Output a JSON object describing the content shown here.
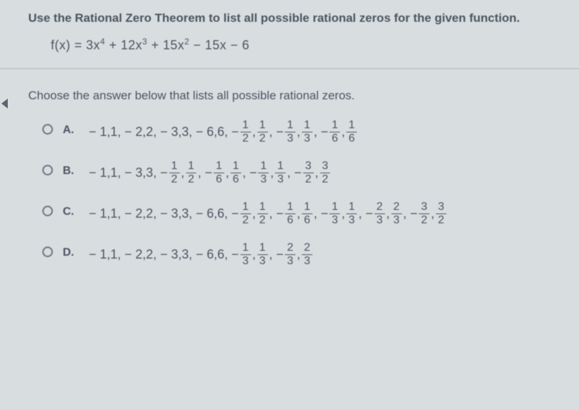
{
  "colors": {
    "bg": "#d8dde0",
    "text": "#4a5560",
    "divider": "#aab2b8",
    "radio_border": "#6a7580"
  },
  "font": {
    "family": "Arial",
    "prompt_size": 17,
    "math_size": 18
  },
  "prompt": "Use the Rational Zero Theorem to list all possible rational zeros for the given function.",
  "equation": {
    "prefix": "f(x) = 3x",
    "terms": [
      {
        "exp": "4",
        "after": " + 12x"
      },
      {
        "exp": "3",
        "after": " + 15x"
      },
      {
        "exp": "2",
        "after": " − 15x − 6"
      }
    ]
  },
  "instruction": "Choose the answer below that lists all possible rational zeros.",
  "options": [
    {
      "letter": "A.",
      "tokens": [
        {
          "t": "− 1,1, − 2,2, − 3,3, − 6,6, −"
        },
        {
          "f": [
            "1",
            "2"
          ]
        },
        {
          "t": ","
        },
        {
          "f": [
            "1",
            "2"
          ]
        },
        {
          "t": ", −"
        },
        {
          "f": [
            "1",
            "3"
          ]
        },
        {
          "t": ","
        },
        {
          "f": [
            "1",
            "3"
          ]
        },
        {
          "t": ", −"
        },
        {
          "f": [
            "1",
            "6"
          ]
        },
        {
          "t": ","
        },
        {
          "f": [
            "1",
            "6"
          ]
        }
      ]
    },
    {
      "letter": "B.",
      "tokens": [
        {
          "t": "− 1,1, − 3,3, −"
        },
        {
          "f": [
            "1",
            "2"
          ]
        },
        {
          "t": ","
        },
        {
          "f": [
            "1",
            "2"
          ]
        },
        {
          "t": ", −"
        },
        {
          "f": [
            "1",
            "6"
          ]
        },
        {
          "t": ","
        },
        {
          "f": [
            "1",
            "6"
          ]
        },
        {
          "t": ", −"
        },
        {
          "f": [
            "1",
            "3"
          ]
        },
        {
          "t": ","
        },
        {
          "f": [
            "1",
            "3"
          ]
        },
        {
          "t": ", −"
        },
        {
          "f": [
            "3",
            "2"
          ]
        },
        {
          "t": ","
        },
        {
          "f": [
            "3",
            "2"
          ]
        }
      ]
    },
    {
      "letter": "C.",
      "tokens": [
        {
          "t": "− 1,1, − 2,2, − 3,3, − 6,6, −"
        },
        {
          "f": [
            "1",
            "2"
          ]
        },
        {
          "t": ","
        },
        {
          "f": [
            "1",
            "2"
          ]
        },
        {
          "t": ", −"
        },
        {
          "f": [
            "1",
            "6"
          ]
        },
        {
          "t": ","
        },
        {
          "f": [
            "1",
            "6"
          ]
        },
        {
          "t": ", −"
        },
        {
          "f": [
            "1",
            "3"
          ]
        },
        {
          "t": ","
        },
        {
          "f": [
            "1",
            "3"
          ]
        },
        {
          "t": ", −"
        },
        {
          "f": [
            "2",
            "3"
          ]
        },
        {
          "t": ","
        },
        {
          "f": [
            "2",
            "3"
          ]
        },
        {
          "t": ", −"
        },
        {
          "f": [
            "3",
            "2"
          ]
        },
        {
          "t": ","
        },
        {
          "f": [
            "3",
            "2"
          ]
        }
      ]
    },
    {
      "letter": "D.",
      "tokens": [
        {
          "t": "− 1,1, − 2,2, − 3,3, − 6,6, −"
        },
        {
          "f": [
            "1",
            "3"
          ]
        },
        {
          "t": ","
        },
        {
          "f": [
            "1",
            "3"
          ]
        },
        {
          "t": ", −"
        },
        {
          "f": [
            "2",
            "3"
          ]
        },
        {
          "t": ","
        },
        {
          "f": [
            "2",
            "3"
          ]
        }
      ]
    }
  ]
}
